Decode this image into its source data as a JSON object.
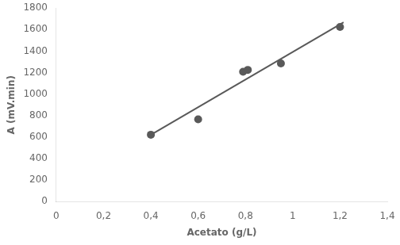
{
  "chart_data": {
    "type": "scatter",
    "xlabel": "Acetato (g/L)",
    "ylabel": "A (mV.min)",
    "series": [
      {
        "type": "scatter",
        "marker": "circle",
        "color": "#595959",
        "x": [
          0.4,
          0.6,
          0.79,
          0.81,
          0.95,
          1.2
        ],
        "values": [
          622,
          765,
          1208,
          1225,
          1285,
          1625
        ]
      },
      {
        "type": "line",
        "line_style": "solid",
        "color": "#595959",
        "x": [
          0.395,
          1.215
        ],
        "values": [
          614.338,
          1667.546
        ]
      }
    ],
    "xlim": [
      0,
      1.4
    ],
    "xticks": [
      0,
      {
        "value": 0.2,
        "label": "0,2"
      },
      {
        "value": 0.4,
        "label": "0,4"
      },
      {
        "value": 0.6,
        "label": "0,6"
      },
      {
        "value": 0.8,
        "label": "0,8"
      },
      1,
      {
        "value": 1.2,
        "label": "1,2"
      },
      {
        "value": 1.4,
        "label": "1,4"
      }
    ],
    "ylim": [
      0,
      1800
    ],
    "yticks": [
      0,
      200,
      400,
      600,
      800,
      1000,
      1200,
      1400,
      1600,
      1800
    ],
    "grid": false
  }
}
